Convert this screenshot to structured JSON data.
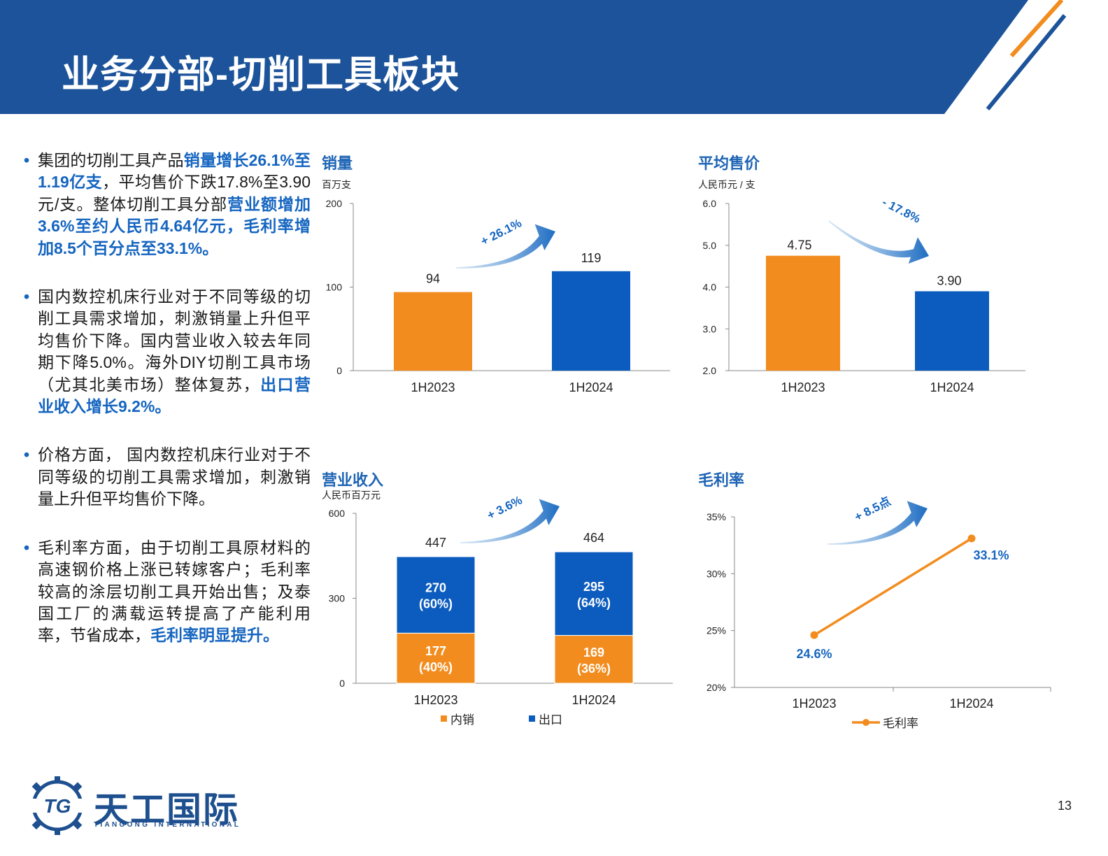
{
  "header": {
    "title": "业务分部-切削工具板块"
  },
  "colors": {
    "orange": "#f28c1e",
    "blue": "#0b5cbe",
    "navy": "#1c539a",
    "accent": "#1565c0",
    "title_blue": "#1e64b4"
  },
  "bullets": [
    {
      "segments": [
        {
          "t": "集团的切削工具产品",
          "hl": false
        },
        {
          "t": "销量增长26.1%至1.19亿支",
          "hl": true
        },
        {
          "t": "，平均售价下跌17.8%至3.90元/支。整体切削工具分部",
          "hl": false
        },
        {
          "t": "营业额增加3.6%至约人民币4.64亿元，毛利率增加8.5个百分点至33.1%。",
          "hl": true
        }
      ]
    },
    {
      "segments": [
        {
          "t": "国内数控机床行业对于不同等级的切削工具需求增加，刺激销量上升但平均售价下降。国内营业收入较去年同期下降5.0%。海外DIY切削工具市场（尤其北美市场）整体复苏，",
          "hl": false
        },
        {
          "t": "出口营业收入增长9.2%。",
          "hl": true
        }
      ]
    },
    {
      "segments": [
        {
          "t": "价格方面， 国内数控机床行业对于不同等级的切削工具需求增加，刺激销量上升但平均售价下降。",
          "hl": false
        }
      ]
    },
    {
      "segments": [
        {
          "t": "毛利率方面，由于切削工具原材料的高速钢价格上涨已转嫁客户；毛利率较高的涂层切削工具开始出售；及泰国工厂的满载运转提高了产能利用率，节省成本，",
          "hl": false
        },
        {
          "t": "毛利率明显提升。",
          "hl": true
        }
      ]
    }
  ],
  "chart_data": [
    {
      "type": "bar",
      "title": "销量",
      "unit": "百万支",
      "categories": [
        "1H2023",
        "1H2024"
      ],
      "values": [
        94,
        119
      ],
      "value_labels": [
        "94",
        "119"
      ],
      "ylim": [
        0,
        200
      ],
      "yticks": [
        "0",
        "100",
        "200"
      ],
      "change_label": "+ 26.1%",
      "legend": "none"
    },
    {
      "type": "bar",
      "title": "平均售价",
      "unit": "人民币元 / 支",
      "categories": [
        "1H2023",
        "1H2024"
      ],
      "values": [
        4.75,
        3.9
      ],
      "value_labels": [
        "4.75",
        "3.90"
      ],
      "ylim": [
        2.0,
        6.0
      ],
      "yticks": [
        "2.0",
        "3.0",
        "4.0",
        "5.0",
        "6.0"
      ],
      "change_label": "- 17.8%",
      "legend": "none"
    },
    {
      "type": "bar",
      "stacked": true,
      "title": "营业收入",
      "unit": "人民币百万元",
      "categories": [
        "1H2023",
        "1H2024"
      ],
      "series": [
        {
          "name": "内销",
          "values": [
            177,
            169
          ],
          "labels": [
            "177",
            "169"
          ],
          "shares": [
            "(40%)",
            "(36%)"
          ]
        },
        {
          "name": "出口",
          "values": [
            270,
            295
          ],
          "labels": [
            "270",
            "295"
          ],
          "shares": [
            "(60%)",
            "(64%)"
          ]
        }
      ],
      "totals": [
        "447",
        "464"
      ],
      "ylim": [
        0,
        600
      ],
      "yticks": [
        "0",
        "300",
        "600"
      ],
      "change_label": "+ 3.6%",
      "legend": "bottom"
    },
    {
      "type": "line",
      "title": "毛利率",
      "categories": [
        "1H2023",
        "1H2024"
      ],
      "series": [
        {
          "name": "毛利率",
          "values": [
            24.6,
            33.1
          ],
          "labels": [
            "24.6%",
            "33.1%"
          ]
        }
      ],
      "ylim": [
        20,
        35
      ],
      "yticks": [
        "20%",
        "25%",
        "30%",
        "35%"
      ],
      "change_label": "+ 8.5点",
      "legend": "bottom"
    }
  ],
  "footer": {
    "logo_mark": "TG",
    "logo_name": "天工国际",
    "logo_sub": "TIANGONG INTERNATIONAL",
    "page_number": "13"
  }
}
